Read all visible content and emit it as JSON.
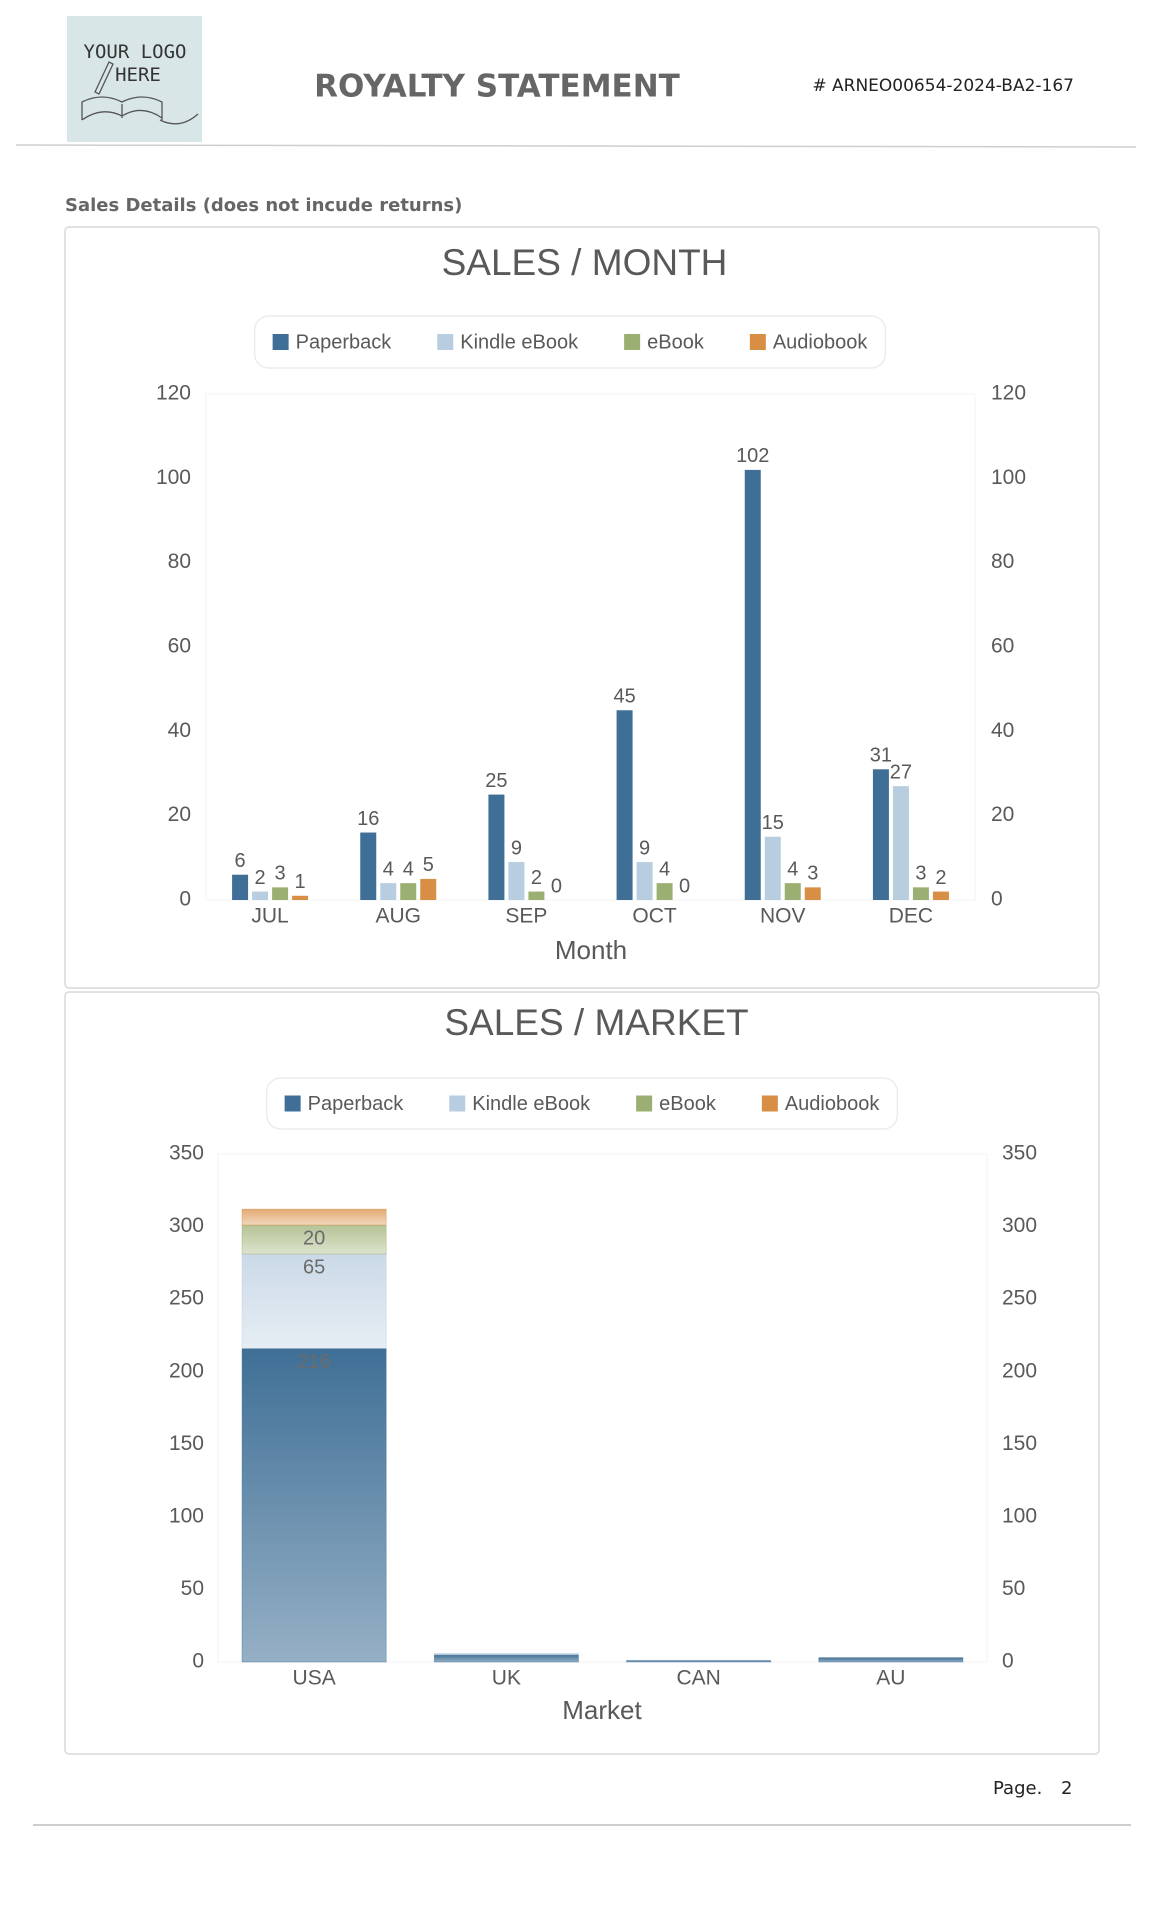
{
  "header": {
    "logo_text": "YOUR LOGO HERE",
    "title": "ROYALTY STATEMENT",
    "reference": "# ARNEO00654-2024-BA2-167"
  },
  "section_title": "Sales Details (does not incude returns)",
  "footer": {
    "page_label": "Page.",
    "page_number": "2"
  },
  "chart_data": [
    {
      "type": "bar",
      "title": "SALES / MONTH",
      "x_label": "Month",
      "categories": [
        "JUL",
        "AUG",
        "SEP",
        "OCT",
        "NOV",
        "DEC"
      ],
      "series": [
        {
          "name": "Paperback",
          "color": "#3f6f96",
          "values": [
            6,
            16,
            25,
            45,
            102,
            31
          ]
        },
        {
          "name": "Kindle eBook",
          "color": "#b9cde0",
          "values": [
            2,
            4,
            9,
            9,
            15,
            27
          ]
        },
        {
          "name": "eBook",
          "color": "#9caf72",
          "values": [
            3,
            4,
            2,
            4,
            4,
            3
          ]
        },
        {
          "name": "Audiobook",
          "color": "#d98e45",
          "values": [
            1,
            5,
            0,
            0,
            3,
            2
          ]
        }
      ],
      "ylim": [
        0,
        120
      ],
      "yticks": [
        0,
        20,
        40,
        60,
        80,
        100,
        120
      ],
      "y2lim": [
        0,
        120
      ],
      "y2ticks": [
        0,
        20,
        40,
        60,
        80,
        100,
        120
      ],
      "data_labels": true,
      "grid": false,
      "legend": "top"
    },
    {
      "type": "stacked-bar",
      "title": "SALES / MARKET",
      "x_label": "Market",
      "categories": [
        "USA",
        "UK",
        "CAN",
        "AU"
      ],
      "series": [
        {
          "name": "Paperback",
          "color": "#3f6f96",
          "values": [
            216,
            5,
            1,
            3
          ],
          "value_labels": [
            "216",
            null,
            null,
            null
          ]
        },
        {
          "name": "Kindle eBook",
          "color": "#b9cde0",
          "values": [
            65,
            1,
            0,
            0
          ],
          "value_labels": [
            "65",
            null,
            null,
            null
          ]
        },
        {
          "name": "eBook",
          "color": "#9caf72",
          "values": [
            20,
            0,
            0,
            0
          ],
          "value_labels": [
            "20",
            null,
            null,
            null
          ]
        },
        {
          "name": "Audiobook",
          "color": "#d98e45",
          "values": [
            11,
            0,
            0,
            0
          ]
        }
      ],
      "ylim": [
        0,
        350
      ],
      "yticks": [
        0,
        50,
        100,
        150,
        200,
        250,
        300,
        350
      ],
      "y2lim": [
        0,
        350
      ],
      "y2ticks": [
        0,
        50,
        100,
        150,
        200,
        250,
        300,
        350
      ],
      "grid": false,
      "legend": "top"
    }
  ]
}
